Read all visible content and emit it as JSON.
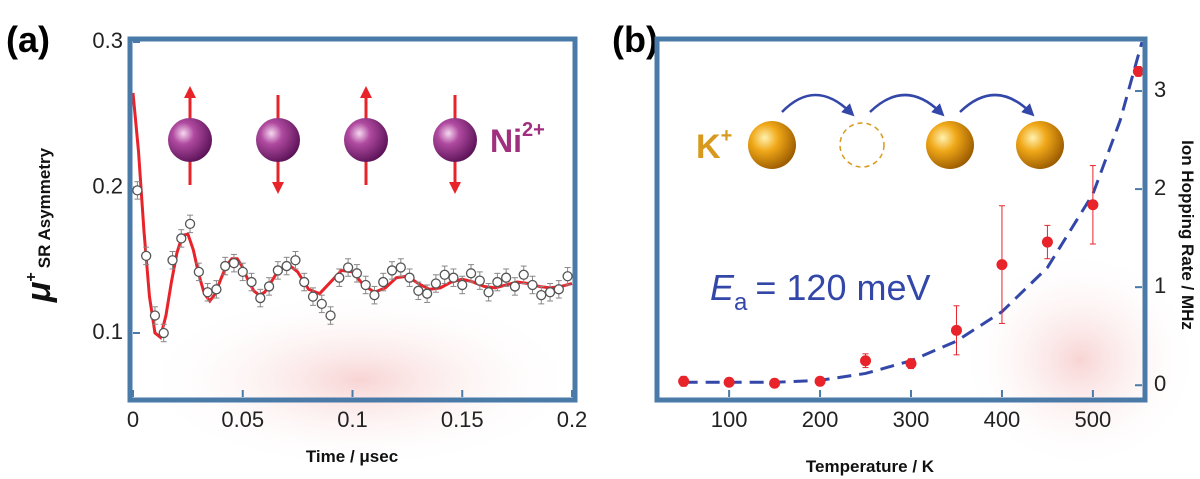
{
  "chart_data": [
    {
      "type": "scatter",
      "panel_label": "(a)",
      "xlabel": "Time / μsec",
      "ylabel": {
        "symbol": "μ",
        "superscript": "+",
        "text": "SR Asymmetry"
      },
      "annotation": {
        "text": "Ni",
        "superscript": "2+"
      },
      "xlim": [
        0,
        0.2
      ],
      "xticks": [
        0,
        0.05,
        0.1,
        0.15,
        0.2
      ],
      "ylim": [
        0.056,
        0.3
      ],
      "yticks": [
        0.1,
        0.2,
        0.3
      ],
      "series": [
        {
          "type": "scatter",
          "color": "#555555",
          "error": 0.006,
          "x": [
            0.002,
            0.006,
            0.01,
            0.014,
            0.018,
            0.022,
            0.026,
            0.03,
            0.034,
            0.038,
            0.042,
            0.046,
            0.05,
            0.054,
            0.058,
            0.062,
            0.066,
            0.07,
            0.074,
            0.078,
            0.082,
            0.086,
            0.09,
            0.094,
            0.098,
            0.102,
            0.106,
            0.11,
            0.114,
            0.118,
            0.122,
            0.126,
            0.13,
            0.134,
            0.138,
            0.142,
            0.146,
            0.15,
            0.154,
            0.158,
            0.162,
            0.166,
            0.17,
            0.174,
            0.178,
            0.182,
            0.186,
            0.19,
            0.194,
            0.198
          ],
          "values": [
            0.198,
            0.153,
            0.112,
            0.1,
            0.15,
            0.165,
            0.175,
            0.142,
            0.128,
            0.13,
            0.146,
            0.148,
            0.142,
            0.135,
            0.124,
            0.132,
            0.143,
            0.146,
            0.15,
            0.135,
            0.125,
            0.12,
            0.112,
            0.138,
            0.145,
            0.141,
            0.133,
            0.126,
            0.135,
            0.143,
            0.145,
            0.138,
            0.129,
            0.127,
            0.134,
            0.14,
            0.138,
            0.133,
            0.141,
            0.136,
            0.128,
            0.135,
            0.138,
            0.132,
            0.14,
            0.133,
            0.126,
            0.128,
            0.13,
            0.139
          ]
        },
        {
          "type": "line",
          "color": "#e8232a",
          "x": [
            0,
            0.0025,
            0.005,
            0.0075,
            0.01,
            0.0125,
            0.015,
            0.0175,
            0.02,
            0.0225,
            0.025,
            0.0275,
            0.03,
            0.0325,
            0.035,
            0.0375,
            0.04,
            0.0425,
            0.045,
            0.0475,
            0.05,
            0.0525,
            0.055,
            0.0575,
            0.06,
            0.065,
            0.07,
            0.075,
            0.08,
            0.085,
            0.09,
            0.095,
            0.1,
            0.105,
            0.11,
            0.115,
            0.12,
            0.125,
            0.13,
            0.135,
            0.14,
            0.145,
            0.15,
            0.155,
            0.16,
            0.165,
            0.17,
            0.175,
            0.18,
            0.185,
            0.19,
            0.195,
            0.2
          ],
          "values": [
            0.265,
            0.225,
            0.17,
            0.125,
            0.1,
            0.097,
            0.112,
            0.135,
            0.155,
            0.167,
            0.168,
            0.157,
            0.14,
            0.127,
            0.122,
            0.127,
            0.137,
            0.146,
            0.151,
            0.151,
            0.145,
            0.136,
            0.129,
            0.126,
            0.128,
            0.14,
            0.148,
            0.142,
            0.13,
            0.127,
            0.135,
            0.143,
            0.142,
            0.133,
            0.128,
            0.131,
            0.138,
            0.139,
            0.134,
            0.13,
            0.131,
            0.135,
            0.137,
            0.135,
            0.132,
            0.131,
            0.133,
            0.135,
            0.134,
            0.132,
            0.131,
            0.132,
            0.134
          ]
        }
      ]
    },
    {
      "type": "scatter",
      "panel_label": "(b)",
      "xlabel": "Temperature / K",
      "ylabel": "Ion Hopping Rate / MHz",
      "annotation": {
        "symbol": "E",
        "subscript": "a",
        "text": "= 120 meV"
      },
      "ion_label": {
        "text": "K",
        "superscript": "+"
      },
      "y_axis_side": "right",
      "xlim": [
        24,
        554
      ],
      "xticks": [
        100,
        200,
        300,
        400,
        500
      ],
      "ylim": [
        -0.12,
        3.5
      ],
      "yticks": [
        0,
        1,
        2,
        3
      ],
      "series": [
        {
          "type": "scatter",
          "color": "#e8232a",
          "x": [
            50,
            100,
            150,
            200,
            250,
            300,
            350,
            400,
            450,
            500,
            550
          ],
          "values": [
            0.04,
            0.03,
            0.02,
            0.04,
            0.25,
            0.22,
            0.56,
            1.23,
            1.46,
            1.84,
            3.2
          ],
          "errors": [
            0.05,
            0.03,
            0.03,
            0.04,
            0.07,
            0.05,
            0.25,
            0.6,
            0.17,
            0.4,
            0.05
          ]
        },
        {
          "type": "line",
          "color": "#3347a8",
          "dashed": true,
          "x": [
            50,
            100,
            150,
            200,
            250,
            300,
            350,
            400,
            450,
            500,
            530,
            554
          ],
          "values": [
            0.03,
            0.03,
            0.03,
            0.05,
            0.12,
            0.25,
            0.45,
            0.75,
            1.2,
            1.95,
            2.7,
            3.5
          ]
        }
      ]
    }
  ]
}
